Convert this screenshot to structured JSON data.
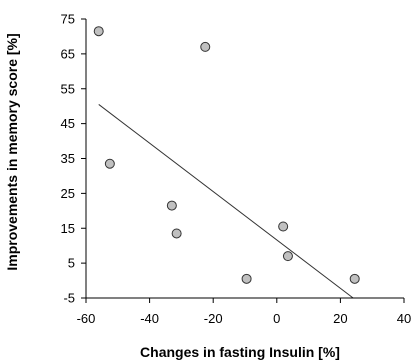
{
  "chart_data": {
    "type": "scatter",
    "title": "",
    "xlabel": "Changes in fasting Insulin [%]",
    "ylabel": "Improvements in memory score [%]",
    "xlim": [
      -60,
      40
    ],
    "ylim": [
      -5,
      75
    ],
    "xticks": [
      -60,
      -40,
      -20,
      0,
      20,
      40
    ],
    "yticks": [
      -5,
      5,
      15,
      25,
      35,
      45,
      55,
      65,
      75
    ],
    "grid": false,
    "points": [
      {
        "x": -56,
        "y": 71.5
      },
      {
        "x": -52.5,
        "y": 33.5
      },
      {
        "x": -33,
        "y": 21.5
      },
      {
        "x": -31.5,
        "y": 13.5
      },
      {
        "x": -22.5,
        "y": 67
      },
      {
        "x": -9.5,
        "y": 0.5
      },
      {
        "x": 2,
        "y": 15.5
      },
      {
        "x": 3.5,
        "y": 7
      },
      {
        "x": 24.5,
        "y": 0.5
      }
    ],
    "trendline": {
      "x1": -56,
      "y1": 50.5,
      "x2": 24,
      "y2": -5
    },
    "colors": {
      "marker_fill": "#c0c0c0",
      "marker_stroke": "#333333",
      "line": "#333333"
    }
  }
}
